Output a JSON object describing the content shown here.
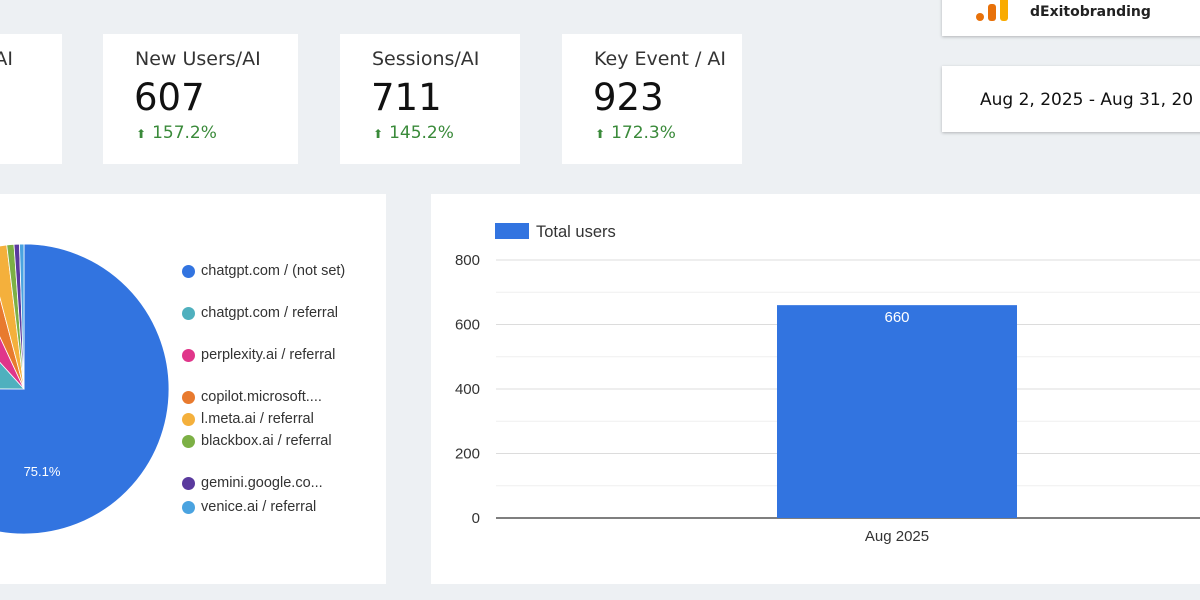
{
  "kpis": [
    {
      "label": "/AI",
      "value": "",
      "change": ""
    },
    {
      "label": "New Users/AI",
      "value": "607",
      "change": "157.2%"
    },
    {
      "label": "Sessions/AI",
      "value": "711",
      "change": "145.2%"
    },
    {
      "label": "Key Event / AI",
      "value": "923",
      "change": "172.3%"
    }
  ],
  "brand": {
    "name": "dExitobranding"
  },
  "date_range": "Aug 2, 2025 - Aug 31, 20",
  "colors": {
    "accent": "#3274e0",
    "positive": "#3a8a3a"
  },
  "chart_data": [
    {
      "type": "pie",
      "slices": [
        {
          "label": "chatgpt.com / (not set)",
          "value": 75.1,
          "color": "#3274e0",
          "display_label": "75.1%"
        },
        {
          "label": "chatgpt.com / referral",
          "value": 13.2,
          "color": "#4fb0be"
        },
        {
          "label": "perplexity.ai / referral",
          "value": 4.8,
          "color": "#e0368a"
        },
        {
          "label": "copilot.microsoft....",
          "value": 2.8,
          "color": "#e87a2e"
        },
        {
          "label": "l.meta.ai / referral",
          "value": 2.2,
          "color": "#f4b03c"
        },
        {
          "label": "blackbox.ai / referral",
          "value": 0.8,
          "color": "#7cb045"
        },
        {
          "label": "gemini.google.co...",
          "value": 0.6,
          "color": "#5a3a9e"
        },
        {
          "label": "venice.ai / referral",
          "value": 0.5,
          "color": "#4aa3e0"
        }
      ]
    },
    {
      "type": "bar",
      "categories": [
        "Aug 2025"
      ],
      "series": [
        {
          "name": "Total users",
          "values": [
            660
          ],
          "color": "#3274e0"
        }
      ],
      "ylim": [
        0,
        800
      ],
      "yticks": [
        0,
        200,
        400,
        600,
        800
      ],
      "data_labels": [
        "660"
      ]
    }
  ]
}
